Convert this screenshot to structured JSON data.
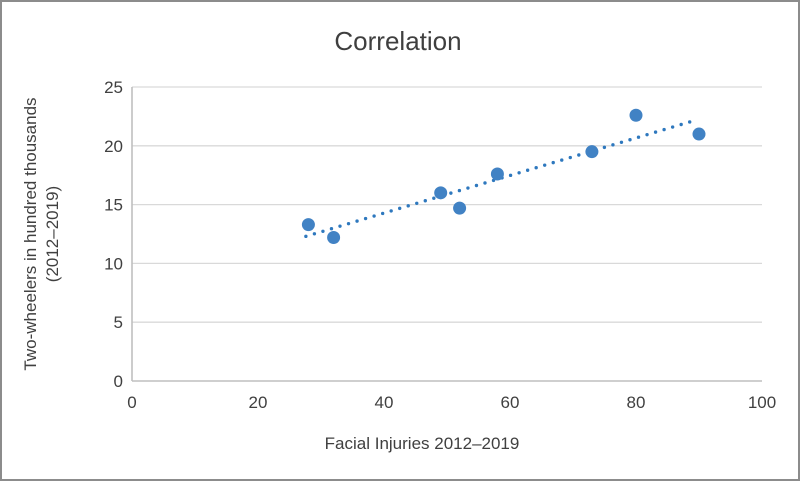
{
  "chart_data": {
    "type": "scatter",
    "title": "Correlation",
    "xlabel": "Facial Injuries 2012–2019",
    "ylabel": "Two-wheelers in hundred thousands (2012–2019)",
    "ylabel_lines": [
      "Two-wheelers in hundred thousands",
      "(2012–2019)"
    ],
    "xlim": [
      0,
      100
    ],
    "ylim": [
      0,
      25
    ],
    "x_ticks": [
      0,
      20,
      40,
      60,
      80,
      100
    ],
    "y_ticks": [
      0,
      5,
      10,
      15,
      20,
      25
    ],
    "grid": "horizontal",
    "legend": "none",
    "points": [
      {
        "x": 28,
        "y": 13.3
      },
      {
        "x": 32,
        "y": 12.2
      },
      {
        "x": 49,
        "y": 16.0
      },
      {
        "x": 52,
        "y": 14.7
      },
      {
        "x": 58,
        "y": 17.6
      },
      {
        "x": 73,
        "y": 19.5
      },
      {
        "x": 80,
        "y": 22.6
      },
      {
        "x": 90,
        "y": 21.0
      }
    ],
    "trendline": {
      "style": "dotted",
      "x_start": 27.6,
      "y_start": 12.3,
      "x_end": 89.6,
      "y_end": 22.2
    },
    "colors": {
      "marker": "#4182C4",
      "trendline": "#2E78BE",
      "gridline": "#D9D9D9",
      "axis_line": "#BFBFBF",
      "text": "#404040",
      "title": "#3F3F3F"
    }
  }
}
